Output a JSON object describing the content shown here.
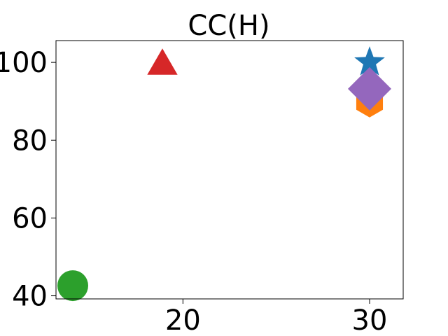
{
  "chart_data": {
    "type": "scatter",
    "title": "CC(H)",
    "xlabel": "",
    "ylabel": "",
    "xlim": [
      13.2,
      31.8
    ],
    "ylim": [
      39.2,
      105.6
    ],
    "x_ticks": [
      20,
      30
    ],
    "y_ticks": [
      40,
      60,
      80,
      100
    ],
    "grid": false,
    "series": [
      {
        "marker": "star",
        "color": "#1f77b4",
        "x": [
          30
        ],
        "y": [
          100
        ]
      },
      {
        "marker": "hexagon",
        "color": "#ff7f0e",
        "x": [
          30
        ],
        "y": [
          89.8
        ]
      },
      {
        "marker": "circle",
        "color": "#2ca02c",
        "x": [
          14.1
        ],
        "y": [
          42.6
        ]
      },
      {
        "marker": "triangle",
        "color": "#d62728",
        "x": [
          18.9
        ],
        "y": [
          99.8
        ]
      },
      {
        "marker": "diamond",
        "color": "#9467bd",
        "x": [
          30
        ],
        "y": [
          93.2
        ]
      }
    ]
  }
}
